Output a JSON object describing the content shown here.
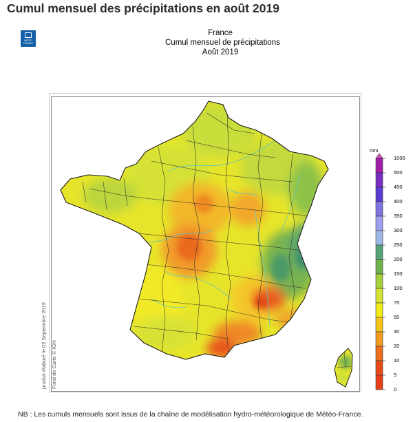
{
  "page_heading": "Cumul mensuel des précipitations en août 2019",
  "logo": {
    "text_line1": "MÉTÉO",
    "text_line2": "FRANCE"
  },
  "map_title": {
    "line1": "France",
    "line2": "Cumul mensuel de précipitations",
    "line3": "Août 2019"
  },
  "side_credits": {
    "produced": "produit élaboré le 02 Septembre 2019",
    "basemap": "Fond de Carte © IGN"
  },
  "legend": {
    "unit": "mm",
    "levels": [
      {
        "label": "1000",
        "color": "#d44fb8"
      },
      {
        "label": "500",
        "color": "#a11fa8"
      },
      {
        "label": "450",
        "color": "#7a2fc4"
      },
      {
        "label": "400",
        "color": "#5a3cd4"
      },
      {
        "label": "350",
        "color": "#7d74e0"
      },
      {
        "label": "300",
        "color": "#9d9ef0"
      },
      {
        "label": "250",
        "color": "#9db9e6"
      },
      {
        "label": "200",
        "color": "#56a37a"
      },
      {
        "label": "150",
        "color": "#72b24e"
      },
      {
        "label": "100",
        "color": "#a6cf3a"
      },
      {
        "label": "75",
        "color": "#d6e435"
      },
      {
        "label": "50",
        "color": "#f2ec1a"
      },
      {
        "label": "30",
        "color": "#f6c51a"
      },
      {
        "label": "20",
        "color": "#f29b1e"
      },
      {
        "label": "10",
        "color": "#ee6f1c"
      },
      {
        "label": "5",
        "color": "#e84a18"
      },
      {
        "label": "0",
        "color": "#e8401a"
      }
    ]
  },
  "footnote": "NB : Les cumuls mensuels sont issus de la chaîne de modélisation hydro-météorologique de Météo-France."
}
